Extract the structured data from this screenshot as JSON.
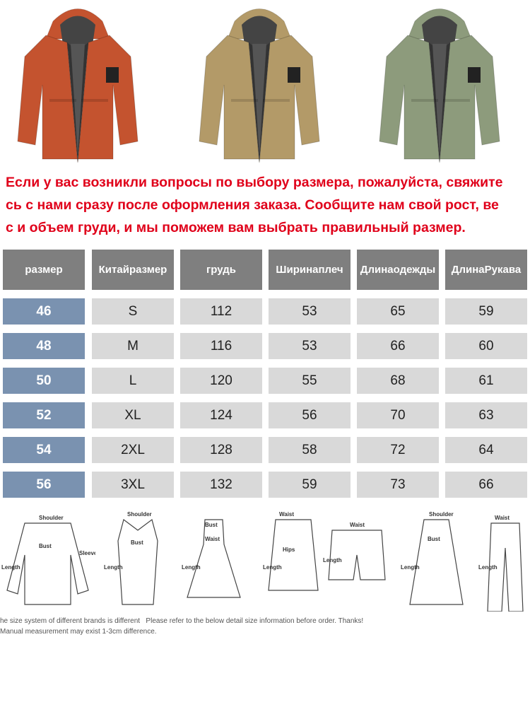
{
  "products": [
    {
      "color_name": "orange",
      "color": "#c4532f"
    },
    {
      "color_name": "khaki",
      "color": "#b39a68"
    },
    {
      "color_name": "green",
      "color": "#8d9b7c"
    }
  ],
  "notice": {
    "line1": "Если у вас возникли вопросы по выбору размера, пожалуйста, свяжите",
    "line2": "сь с нами сразу после оформления заказа. Сообщите нам свой рост, ве",
    "line3": "с и объем груди, и мы поможем вам выбрать правильный размер."
  },
  "table": {
    "headers": [
      [
        "размер",
        ""
      ],
      [
        "Китай",
        "размер"
      ],
      [
        "грудь",
        ""
      ],
      [
        "Ширина",
        "плеч"
      ],
      [
        "Длина",
        "одежды"
      ],
      [
        "Длина",
        "Рукава"
      ]
    ],
    "rows": [
      [
        "46",
        "S",
        "112",
        "53",
        "65",
        "59"
      ],
      [
        "48",
        "M",
        "116",
        "53",
        "66",
        "60"
      ],
      [
        "50",
        "L",
        "120",
        "55",
        "68",
        "61"
      ],
      [
        "52",
        "XL",
        "124",
        "56",
        "70",
        "63"
      ],
      [
        "54",
        "2XL",
        "128",
        "58",
        "72",
        "64"
      ],
      [
        "56",
        "3XL",
        "132",
        "59",
        "73",
        "66"
      ]
    ],
    "colors": {
      "header": "#7f7f7f",
      "size": "#7a92b0",
      "cell": "#d9d9d9"
    }
  },
  "diagrams": {
    "shirt": [
      "Shoulder",
      "Bust",
      "Sleeve",
      "Length"
    ],
    "vest": [
      "Shoulder",
      "Bust",
      "Length"
    ],
    "dress": [
      "Bust",
      "Waist",
      "Length"
    ],
    "skirt": [
      "Waist",
      "Hips",
      "Length"
    ],
    "shorts": [
      "Waist",
      "Length"
    ],
    "coat": [
      "Shoulder",
      "Bust",
      "Length"
    ],
    "pants": [
      "Waist",
      "Length"
    ]
  },
  "footer": {
    "line1a": "he size system of different brands is different",
    "line1b": "Please refer to the below detail size information before order. Thanks!",
    "line2": "Manual measurement may exist 1-3cm difference."
  }
}
